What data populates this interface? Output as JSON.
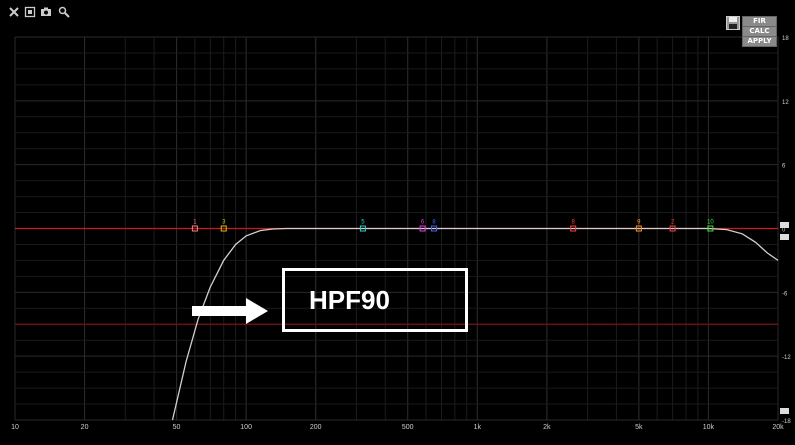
{
  "toolbar": {
    "icons": [
      "close-icon",
      "fit-icon",
      "camera-icon",
      "zoom-icon"
    ]
  },
  "buttons": {
    "fir": "FIR",
    "calc": "CALC",
    "apply": "APPLY"
  },
  "callout": {
    "label": "HPF90"
  },
  "colors": {
    "background": "#000000",
    "grid": "#2a2a2a",
    "zero_line": "#d01818",
    "curve": "#d0d0d0",
    "callout": "#ffffff"
  },
  "chart_data": {
    "type": "line",
    "x_scale": "log",
    "xlim": [
      10,
      20000
    ],
    "ylim": [
      -18,
      18
    ],
    "x_ticks": [
      10,
      20,
      50,
      100,
      200,
      500,
      1000,
      2000,
      5000,
      10000,
      20000
    ],
    "x_tick_labels": [
      "10",
      "20",
      "50",
      "100",
      "200",
      "500",
      "1k",
      "2k",
      "5k",
      "10k",
      "20k"
    ],
    "y_ticks": [
      18,
      12,
      6,
      0,
      -6,
      -12,
      -18
    ],
    "y_tick_labels": [
      "18",
      "12",
      "6",
      "0",
      "-6",
      "-12",
      "-18"
    ],
    "grid": true,
    "reference_lines": [
      {
        "y": 0,
        "color": "#d01818"
      },
      {
        "y": -9,
        "color": "#7a1010"
      }
    ],
    "series": [
      {
        "color": "#d0d0d0",
        "x": [
          48,
          55,
          62,
          70,
          80,
          90,
          100,
          115,
          130,
          150,
          200,
          500,
          1000,
          5000,
          10000,
          12000,
          14000,
          16000,
          18000,
          20000
        ],
        "y": [
          -18,
          -12.5,
          -8.5,
          -5.5,
          -3.0,
          -1.5,
          -0.7,
          -0.2,
          -0.05,
          0,
          0,
          0,
          0,
          0,
          0,
          -0.1,
          -0.5,
          -1.3,
          -2.3,
          -3.0
        ]
      }
    ],
    "filter_markers": [
      {
        "label": "1",
        "freq": 60,
        "gain": 0,
        "color": "#ff8080"
      },
      {
        "label": "3",
        "freq": 80,
        "gain": 0,
        "color": "#e0c000"
      },
      {
        "label": "5",
        "freq": 320,
        "gain": 0,
        "color": "#30d0d0"
      },
      {
        "label": "6",
        "freq": 580,
        "gain": 0,
        "color": "#e040e0"
      },
      {
        "label": "8",
        "freq": 650,
        "gain": 0,
        "color": "#4060ff"
      },
      {
        "label": "8",
        "freq": 2600,
        "gain": 0,
        "color": "#ff4040"
      },
      {
        "label": "9",
        "freq": 5000,
        "gain": 0,
        "color": "#ff9020"
      },
      {
        "label": "2",
        "freq": 7000,
        "gain": 0,
        "color": "#ff4040"
      },
      {
        "label": "10",
        "freq": 10200,
        "gain": 0,
        "color": "#40e040"
      }
    ]
  }
}
